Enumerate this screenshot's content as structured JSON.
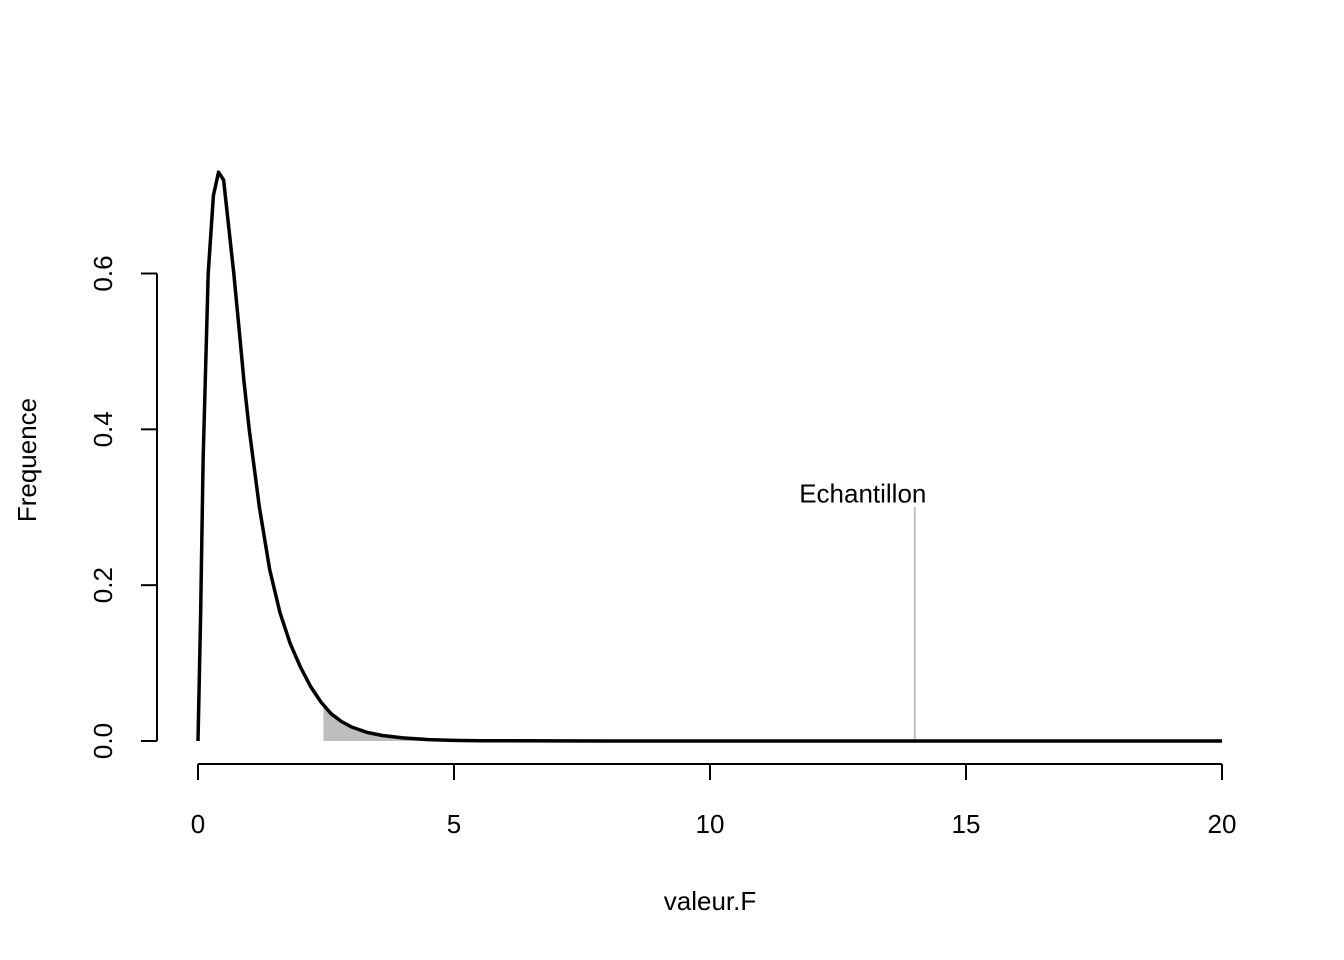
{
  "chart_data": {
    "type": "line",
    "title": "",
    "xlabel": "valeur.F",
    "ylabel": "Frequence",
    "xlim": [
      0,
      20
    ],
    "ylim": [
      0,
      0.72
    ],
    "x_ticks": [
      0,
      5,
      10,
      15,
      20
    ],
    "x_tick_labels": [
      "0",
      "5",
      "10",
      "15",
      "20"
    ],
    "y_ticks": [
      0.0,
      0.2,
      0.4,
      0.6
    ],
    "y_tick_labels": [
      "0.0",
      "0.2",
      "0.4",
      "0.6"
    ],
    "grid": false,
    "series": [
      {
        "color": "#000000",
        "x": [
          0,
          0.05,
          0.1,
          0.2,
          0.3,
          0.4,
          0.5,
          0.6,
          0.7,
          0.8,
          0.9,
          1.0,
          1.2,
          1.4,
          1.6,
          1.8,
          2.0,
          2.2,
          2.4,
          2.6,
          2.8,
          3.0,
          3.3,
          3.6,
          4.0,
          4.5,
          5.0,
          5.5,
          6,
          8,
          10,
          12,
          14,
          16,
          18,
          20
        ],
        "y": [
          0,
          0.16,
          0.36,
          0.6,
          0.7,
          0.73,
          0.72,
          0.66,
          0.6,
          0.53,
          0.46,
          0.4,
          0.3,
          0.22,
          0.165,
          0.125,
          0.095,
          0.07,
          0.05,
          0.035,
          0.025,
          0.018,
          0.011,
          0.007,
          0.004,
          0.0018,
          0.0008,
          0.0004,
          0.0002,
          2e-05,
          0,
          0,
          0,
          0,
          0,
          0
        ]
      }
    ],
    "shaded_region": {
      "from": 2.45,
      "to": 20,
      "color": "#bebebe"
    },
    "annotation": {
      "text": "Echantillon",
      "x": 14.0,
      "y_top": 0.3,
      "line_color": "#bebebe"
    }
  }
}
